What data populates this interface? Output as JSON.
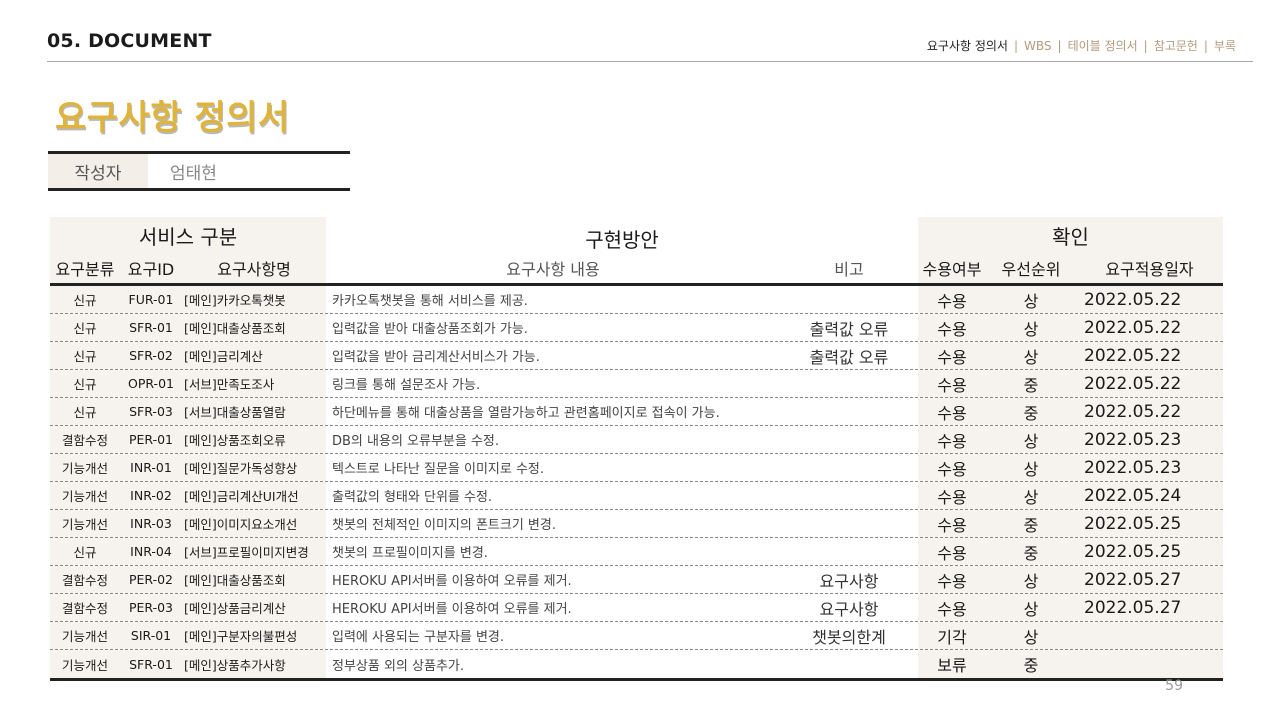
{
  "header": {
    "section": "05. DOCUMENT",
    "nav": [
      "요구사항 정의서",
      "WBS",
      "테이블 정의서",
      "참고문헌",
      "부록"
    ],
    "nav_separator": "|"
  },
  "page_title": "요구사항 정의서",
  "author": {
    "label": "작성자",
    "value": "엄태현"
  },
  "table": {
    "groups": {
      "service": "서비스 구분",
      "implementation": "구현방안",
      "check": "확인"
    },
    "columns": [
      "요구분류",
      "요구ID",
      "요구사항명",
      "요구사항 내용",
      "비고",
      "수용여부",
      "우선순위",
      "요구적용일자"
    ],
    "rows": [
      [
        "신규",
        "FUR-01",
        "[메인]카카오톡챗봇",
        "카카오톡챗봇을 통해 서비스를 제공.",
        "",
        "수용",
        "상",
        "2022.05.22"
      ],
      [
        "신규",
        "SFR-01",
        "[메인]대출상품조회",
        "입력값을 받아 대출상품조회가 가능.",
        "출력값 오류",
        "수용",
        "상",
        "2022.05.22"
      ],
      [
        "신규",
        "SFR-02",
        "[메인]금리계산",
        "입력값을 받아 금리계산서비스가 가능.",
        "출력값 오류",
        "수용",
        "상",
        "2022.05.22"
      ],
      [
        "신규",
        "OPR-01",
        "[서브]만족도조사",
        "링크를 통해 설문조사 가능.",
        "",
        "수용",
        "중",
        "2022.05.22"
      ],
      [
        "신규",
        "SFR-03",
        "[서브]대출상품열람",
        "하단메뉴를 통해 대출상품을 열람가능하고 관련홈페이지로 접속이 가능.",
        "",
        "수용",
        "중",
        "2022.05.22"
      ],
      [
        "결함수정",
        "PER-01",
        "[메인]상품조회오류",
        "DB의 내용의 오류부분을 수정.",
        "",
        "수용",
        "상",
        "2022.05.23"
      ],
      [
        "기능개선",
        "INR-01",
        "[메인]질문가독성향상",
        "텍스트로 나타난 질문을 이미지로 수정.",
        "",
        "수용",
        "상",
        "2022.05.23"
      ],
      [
        "기능개선",
        "INR-02",
        "[메인]금리계산UI개선",
        "출력값의 형태와 단위를 수정.",
        "",
        "수용",
        "상",
        "2022.05.24"
      ],
      [
        "기능개선",
        "INR-03",
        "[메인]이미지요소개선",
        "챗봇의 전체적인 이미지의 폰트크기 변경.",
        "",
        "수용",
        "중",
        "2022.05.25"
      ],
      [
        "신규",
        "INR-04",
        "[서브]프로필이미지변경",
        "챗봇의 프로필이미지를 변경.",
        "",
        "수용",
        "중",
        "2022.05.25"
      ],
      [
        "결함수정",
        "PER-02",
        "[메인]대출상품조회",
        "HEROKU API서버를 이용하여 오류를 제거.",
        "요구사항",
        "수용",
        "상",
        "2022.05.27"
      ],
      [
        "결함수정",
        "PER-03",
        "[메인]상품금리계산",
        "HEROKU API서버를 이용하여 오류를 제거.",
        "요구사항",
        "수용",
        "상",
        "2022.05.27"
      ],
      [
        "기능개선",
        "SIR-01",
        "[메인]구분자의불편성",
        "입력에 사용되는 구분자를 변경.",
        "챗봇의한계",
        "기각",
        "상",
        ""
      ],
      [
        "기능개선",
        "SFR-01",
        "[메인]상품추가사항",
        "정부상품 외의 상품추가.",
        "",
        "보류",
        "중",
        ""
      ]
    ]
  },
  "page_number": "59"
}
